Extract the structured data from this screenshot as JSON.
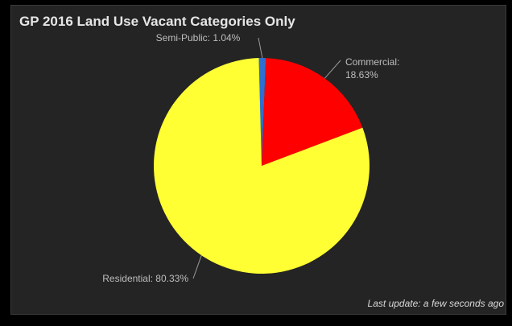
{
  "widget": {
    "title": "GP 2016 Land Use Vacant Categories Only",
    "last_update": "Last update: a few seconds ago"
  },
  "chart_data": {
    "type": "pie",
    "title": "GP 2016 Land Use Vacant Categories Only",
    "slices": [
      {
        "label": "Semi-Public",
        "value": 1.04,
        "display": "1.04%",
        "color": "#2e6fd1"
      },
      {
        "label": "Commercial",
        "value": 18.63,
        "display": "18.63%",
        "color": "#ff0000"
      },
      {
        "label": "Residential",
        "value": 80.33,
        "display": "80.33%",
        "color": "#ffff33"
      }
    ]
  }
}
